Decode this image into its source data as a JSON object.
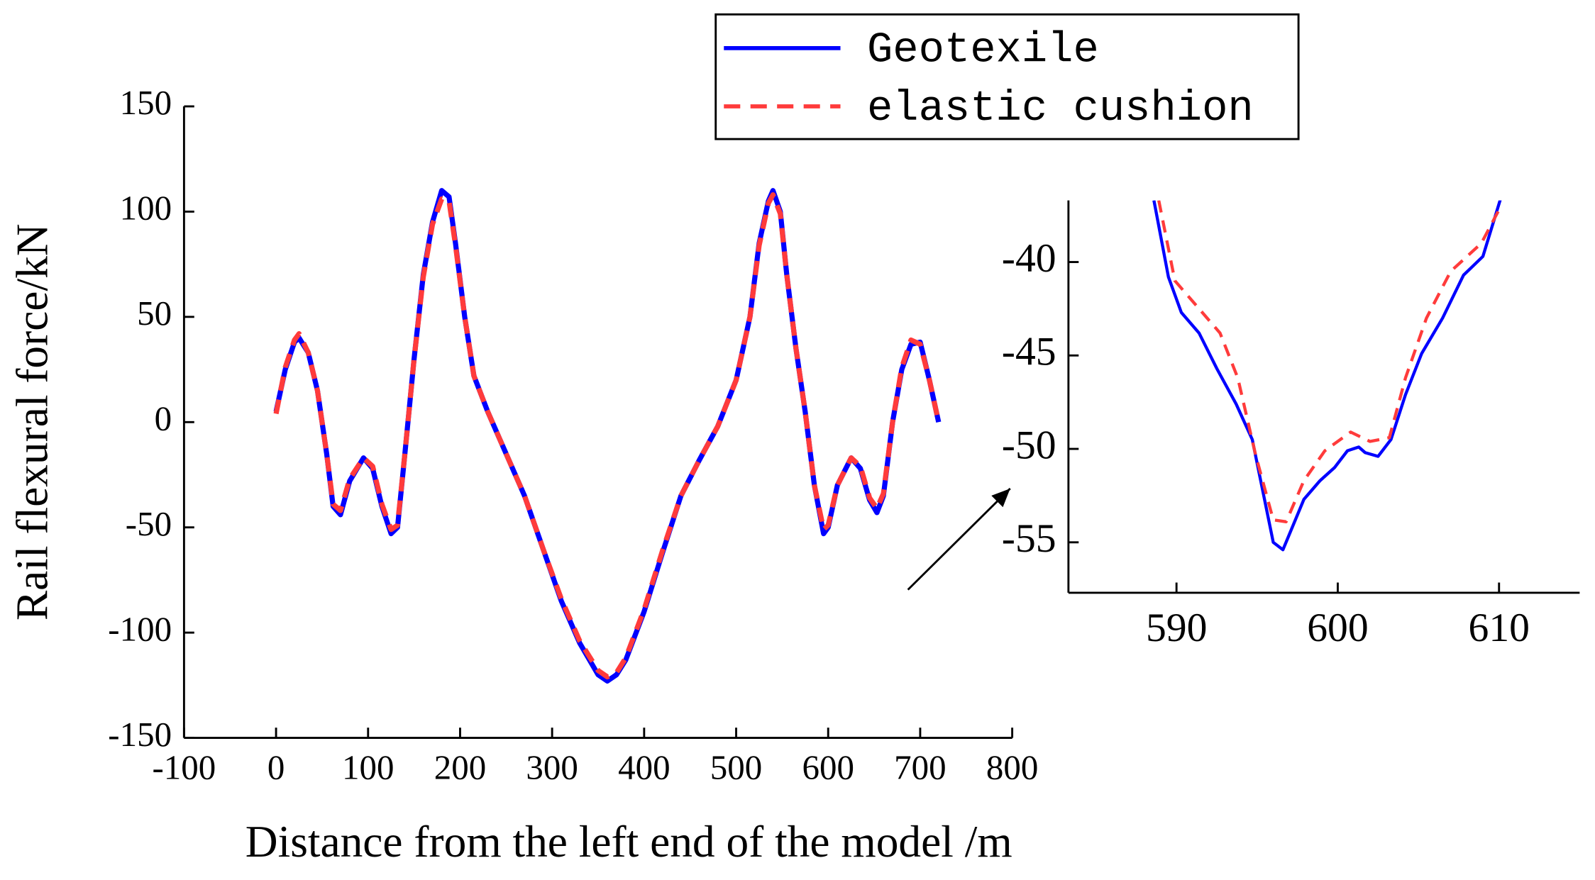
{
  "chart_data": [
    {
      "type": "line",
      "xlabel": "Distance from the left end of the model /m",
      "ylabel": "Rail flexural force/kN",
      "xlim": [
        -100,
        800
      ],
      "xticks": [
        -100,
        0,
        100,
        200,
        300,
        400,
        500,
        600,
        700,
        800
      ],
      "ylim": [
        -150,
        150
      ],
      "yticks": [
        150,
        100,
        50,
        0,
        -50,
        -100,
        -150
      ],
      "series": [
        {
          "name": "Geotexile",
          "color": "#0000ff",
          "x": [
            0,
            10,
            20,
            25,
            35,
            45,
            55,
            62,
            70,
            80,
            95,
            105,
            115,
            125,
            132,
            140,
            150,
            160,
            170,
            180,
            188,
            195,
            205,
            215,
            230,
            250,
            270,
            290,
            310,
            330,
            350,
            360,
            370,
            380,
            400,
            420,
            440,
            460,
            480,
            500,
            515,
            525,
            535,
            540,
            548,
            555,
            565,
            575,
            585,
            595,
            600,
            610,
            625,
            635,
            645,
            653,
            660,
            670,
            680,
            690,
            700,
            710,
            720
          ],
          "values": [
            5,
            25,
            38,
            40,
            33,
            15,
            -15,
            -40,
            -44,
            -28,
            -17,
            -22,
            -40,
            -53,
            -50,
            -15,
            30,
            70,
            95,
            110,
            107,
            85,
            50,
            22,
            5,
            -15,
            -35,
            -60,
            -85,
            -105,
            -120,
            -123,
            -120,
            -113,
            -90,
            -62,
            -35,
            -18,
            -2,
            20,
            50,
            85,
            105,
            110,
            100,
            70,
            35,
            5,
            -30,
            -53,
            -50,
            -30,
            -17,
            -22,
            -37,
            -43,
            -35,
            0,
            25,
            37,
            38,
            20,
            0
          ]
        },
        {
          "name": "elastic cushion",
          "color": "#ff3b3b",
          "x": [
            0,
            10,
            20,
            25,
            35,
            45,
            55,
            62,
            70,
            80,
            95,
            105,
            115,
            125,
            132,
            140,
            150,
            160,
            170,
            180,
            188,
            195,
            205,
            215,
            230,
            250,
            270,
            290,
            310,
            330,
            350,
            360,
            370,
            380,
            400,
            420,
            440,
            460,
            480,
            500,
            515,
            525,
            535,
            540,
            548,
            555,
            565,
            575,
            585,
            595,
            600,
            610,
            625,
            635,
            645,
            653,
            660,
            670,
            680,
            690,
            700,
            710,
            720
          ],
          "values": [
            4,
            26,
            39,
            42,
            33,
            15,
            -15,
            -39,
            -42,
            -27,
            -17,
            -21,
            -39,
            -51,
            -49,
            -15,
            30,
            69,
            94,
            106,
            105,
            84,
            50,
            22,
            5,
            -15,
            -35,
            -60,
            -84,
            -104,
            -118,
            -121,
            -119,
            -112,
            -89,
            -61,
            -35,
            -18,
            -2,
            20,
            50,
            84,
            104,
            108,
            99,
            70,
            35,
            5,
            -30,
            -51,
            -49,
            -30,
            -17,
            -21,
            -36,
            -41,
            -34,
            0,
            26,
            39,
            37,
            20,
            0
          ]
        }
      ]
    },
    {
      "type": "line",
      "xlim": [
        583.3,
        615
      ],
      "xticks": [
        590,
        600,
        610
      ],
      "ylim": [
        -57.7,
        -36.7
      ],
      "yticks": [
        -40,
        -45,
        -50,
        -55
      ],
      "series": [
        {
          "name": "Geotexile",
          "color": "#0000ff",
          "x": [
            588.6,
            589.5,
            590.3,
            591.4,
            592.5,
            593.7,
            594.7,
            596.0,
            596.6,
            597.9,
            598.9,
            599.8,
            600.6,
            601.3,
            601.7,
            602.5,
            603.3,
            604.2,
            605.2,
            606.5,
            607.8,
            609.0,
            610.1
          ],
          "values": [
            -36.7,
            -40.8,
            -42.7,
            -43.8,
            -45.7,
            -47.6,
            -49.5,
            -55.0,
            -55.4,
            -52.7,
            -51.7,
            -51.0,
            -50.1,
            -49.9,
            -50.2,
            -50.4,
            -49.5,
            -47.1,
            -44.9,
            -43.0,
            -40.7,
            -39.7,
            -36.6
          ]
        },
        {
          "name": "elastic cushion",
          "color": "#ff3b3b",
          "x": [
            588.9,
            589.9,
            591.3,
            592.7,
            593.8,
            594.9,
            596.0,
            596.8,
            597.9,
            599.2,
            600.8,
            602.0,
            603.2,
            604.2,
            605.5,
            607.0,
            608.9,
            610.0
          ],
          "values": [
            -36.7,
            -41.0,
            -42.4,
            -43.8,
            -46.2,
            -50.3,
            -53.8,
            -53.9,
            -51.7,
            -50.1,
            -49.1,
            -49.6,
            -49.4,
            -46.2,
            -43.0,
            -40.5,
            -39.0,
            -37.2
          ]
        }
      ]
    }
  ]
}
